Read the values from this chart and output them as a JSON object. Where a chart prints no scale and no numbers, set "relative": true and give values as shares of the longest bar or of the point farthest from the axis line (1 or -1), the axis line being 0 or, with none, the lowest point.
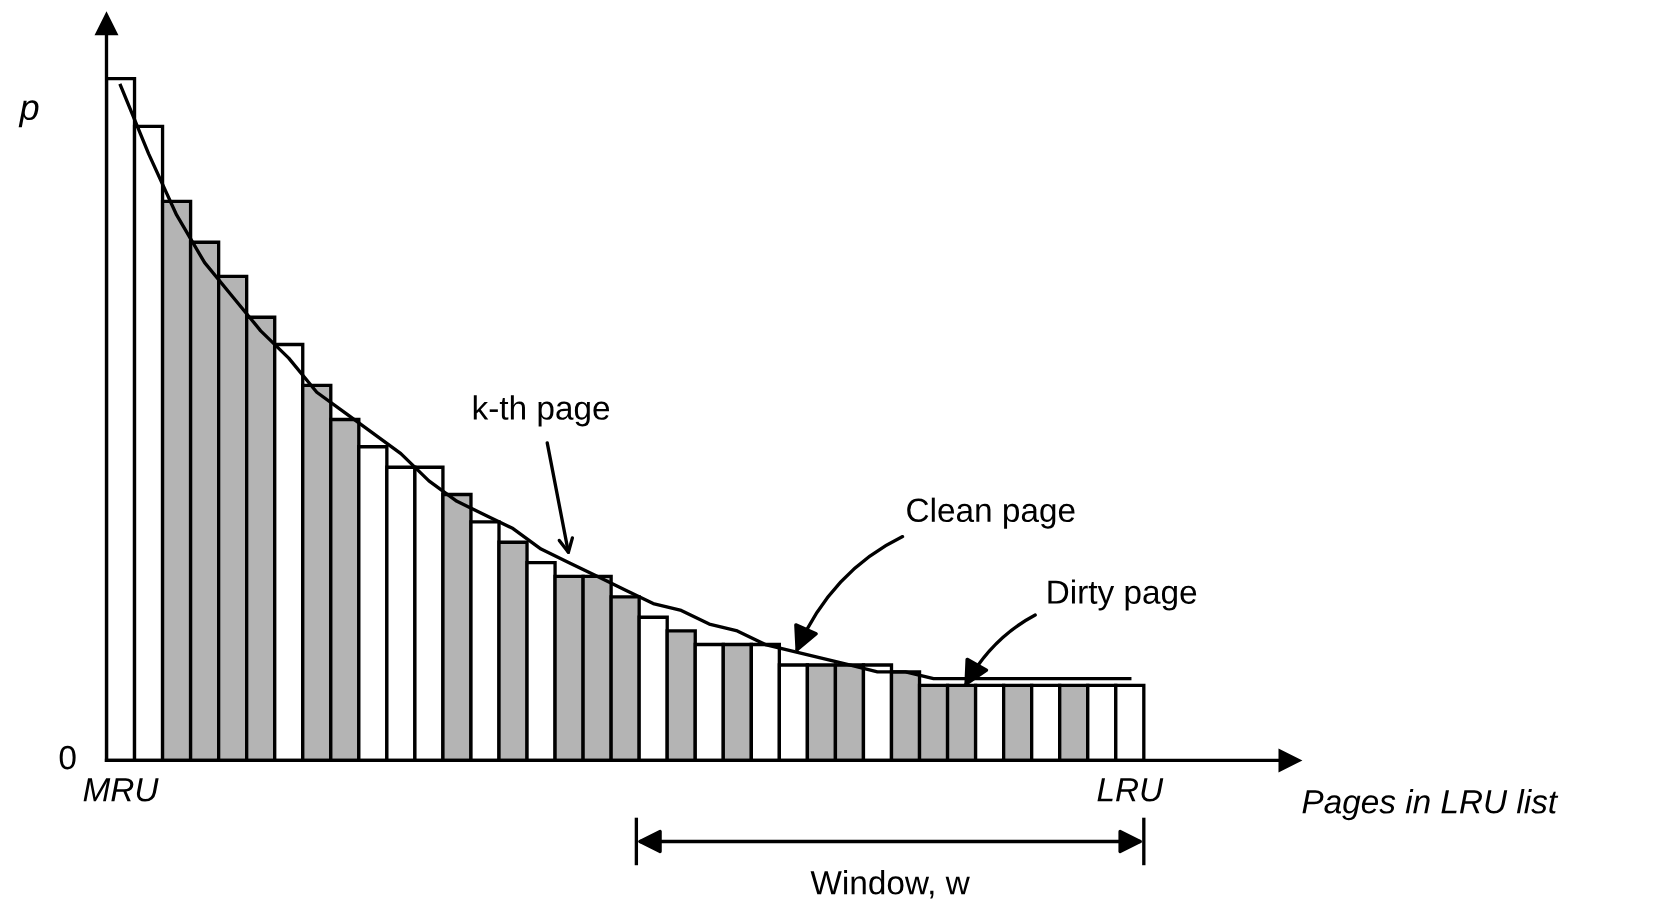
{
  "chart_data": {
    "type": "bar",
    "relative": true,
    "ylabel": "p",
    "xlabel": "Pages in LRU list",
    "categories": [
      "MRU",
      null,
      null,
      null,
      null,
      null,
      null,
      null,
      null,
      null,
      null,
      null,
      null,
      null,
      null,
      null,
      null,
      null,
      null,
      null,
      null,
      null,
      null,
      null,
      null,
      null,
      null,
      null,
      null,
      null,
      null,
      null,
      null,
      null,
      null,
      null,
      "LRU"
    ],
    "series": [
      {
        "values": [
          1.0,
          0.93,
          0.82,
          0.76,
          0.71,
          0.65,
          0.61,
          0.55,
          0.5,
          0.46,
          0.43,
          0.43,
          0.39,
          0.35,
          0.32,
          0.29,
          0.27,
          0.27,
          0.24,
          0.21,
          0.19,
          0.17,
          0.17,
          0.17,
          0.14,
          0.14,
          0.14,
          0.14,
          0.13,
          0.11,
          0.11,
          0.11,
          0.11,
          0.11,
          0.11,
          0.11,
          0.11
        ],
        "colors": [
          "#ffffff",
          "#ffffff",
          "#b4b4b4",
          "#b4b4b4",
          "#b4b4b4",
          "#b4b4b4",
          "#ffffff",
          "#b4b4b4",
          "#b4b4b4",
          "#ffffff",
          "#ffffff",
          "#ffffff",
          "#b4b4b4",
          "#ffffff",
          "#b4b4b4",
          "#ffffff",
          "#b4b4b4",
          "#b4b4b4",
          "#b4b4b4",
          "#ffffff",
          "#b4b4b4",
          "#ffffff",
          "#b4b4b4",
          "#ffffff",
          "#ffffff",
          "#b4b4b4",
          "#b4b4b4",
          "#ffffff",
          "#b4b4b4",
          "#b4b4b4",
          "#b4b4b4",
          "#ffffff",
          "#b4b4b4",
          "#ffffff",
          "#b4b4b4",
          "#ffffff",
          "#ffffff"
        ]
      },
      {
        "type": "line",
        "color": "#000000",
        "values": [
          0.99,
          0.89,
          0.8,
          0.73,
          0.68,
          0.63,
          0.59,
          0.54,
          0.51,
          0.48,
          0.45,
          0.41,
          0.38,
          0.36,
          0.34,
          0.31,
          0.29,
          0.27,
          0.25,
          0.23,
          0.22,
          0.2,
          0.19,
          0.17,
          0.16,
          0.15,
          0.14,
          0.13,
          0.13,
          0.12,
          0.12,
          0.12,
          0.12,
          0.12,
          0.12,
          0.12,
          0.12
        ]
      }
    ],
    "annotations": [
      "k-th page",
      "Clean page",
      "Dirty page",
      "Window, w",
      "0"
    ]
  }
}
